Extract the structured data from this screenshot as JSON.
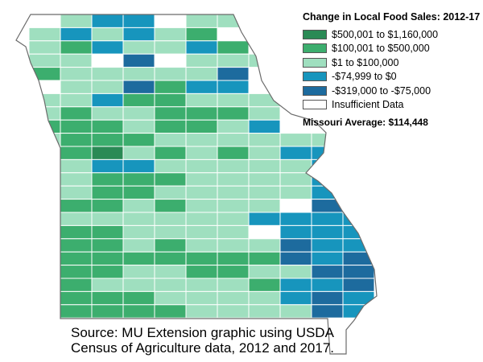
{
  "legend": {
    "title": "Change in Local Food Sales: 2012-17",
    "items": [
      {
        "label": "$500,001 to $1,160,000",
        "color": "#2a8a55"
      },
      {
        "label": "$100,001 to $500,000",
        "color": "#3cae6e"
      },
      {
        "label": "$1 to $100,000",
        "color": "#9fdfbf"
      },
      {
        "label": "-$74,999 to $0",
        "color": "#1795bd"
      },
      {
        "label": "-$319,000 to -$75,000",
        "color": "#1d6b9e"
      },
      {
        "label": "Insufficient Data",
        "color": "#ffffff"
      }
    ],
    "average_label": "Missouri  Average: $114,448"
  },
  "source": {
    "line1": "Source: MU Extension graphic using USDA",
    "line2": "Census of Agriculture data, 2012 and 2017."
  }
}
